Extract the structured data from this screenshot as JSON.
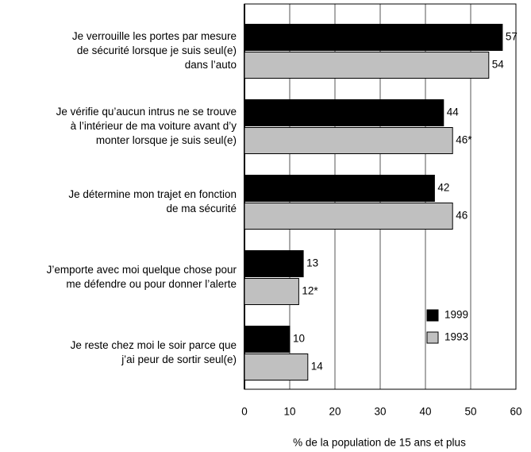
{
  "chart_data": {
    "type": "bar",
    "orientation": "horizontal",
    "categories": [
      [
        "Je verrouille les portes par mesure",
        "de sécurité lorsque je suis seul(e)",
        "dans l’auto"
      ],
      [
        "Je vérifie qu’aucun intrus ne se trouve",
        "à l’intérieur de ma voiture avant d’y",
        "monter lorsque je suis seul(e)"
      ],
      [
        "Je détermine mon trajet en fonction",
        "de ma sécurité"
      ],
      [
        "J’emporte avec moi quelque chose pour",
        "me défendre ou pour donner l’alerte"
      ],
      [
        "Je reste chez moi le soir parce que",
        "j’ai peur de sortir seul(e)"
      ]
    ],
    "series": [
      {
        "name": "1999",
        "color": "#000000",
        "values": [
          57,
          44,
          42,
          13,
          10
        ]
      },
      {
        "name": "1993",
        "color": "#c0c0c0",
        "values": [
          54,
          46,
          46,
          12,
          14
        ],
        "value_labels": [
          "54",
          "46*",
          "46",
          "12*",
          "14"
        ]
      }
    ],
    "xlabel": "% de la population de 15 ans et plus",
    "xlim": [
      0,
      60
    ],
    "xticks": [
      0,
      10,
      20,
      30,
      40,
      50,
      60
    ],
    "grid": true
  }
}
